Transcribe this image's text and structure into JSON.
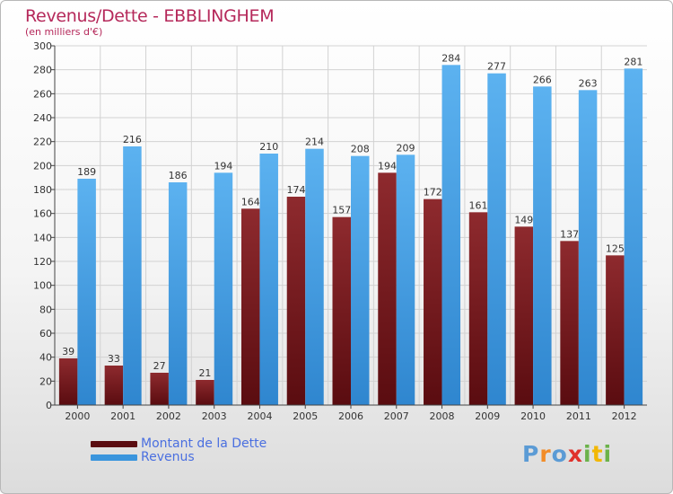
{
  "header": {
    "title": "Revenus/Dette - EBBLINGHEM",
    "subtitle": "(en milliers d'€)"
  },
  "chart_data": {
    "type": "bar",
    "categories": [
      "2000",
      "2001",
      "2002",
      "2003",
      "2004",
      "2005",
      "2006",
      "2007",
      "2008",
      "2009",
      "2010",
      "2011",
      "2012"
    ],
    "series": [
      {
        "name": "Montant de la Dette",
        "color": "#7a1a1e",
        "values": [
          39,
          33,
          27,
          21,
          164,
          174,
          157,
          194,
          172,
          161,
          149,
          137,
          125
        ]
      },
      {
        "name": "Revenus",
        "color": "#4aa3e6",
        "values": [
          189,
          216,
          186,
          194,
          210,
          214,
          208,
          209,
          284,
          277,
          266,
          263,
          281
        ]
      }
    ],
    "ylim": [
      0,
      300
    ],
    "yticks": [
      0,
      20,
      40,
      60,
      80,
      100,
      120,
      140,
      160,
      180,
      200,
      220,
      240,
      260,
      280,
      300
    ],
    "grid": true,
    "legend_position": "bottom-left"
  },
  "legend": {
    "items": [
      {
        "label": "Montant de la Dette",
        "color": "#7a1a1e"
      },
      {
        "label": "Revenus",
        "color": "#4aa3e6"
      }
    ]
  },
  "logo": {
    "text": "Proxiti",
    "letters": [
      "P",
      "r",
      "o",
      "x",
      "i",
      "t",
      "i"
    ],
    "colors": [
      "#5b9bd5",
      "#f28c28",
      "#5b9bd5",
      "#e0312b",
      "#6bb24a",
      "#f2b705",
      "#6bb24a"
    ]
  }
}
